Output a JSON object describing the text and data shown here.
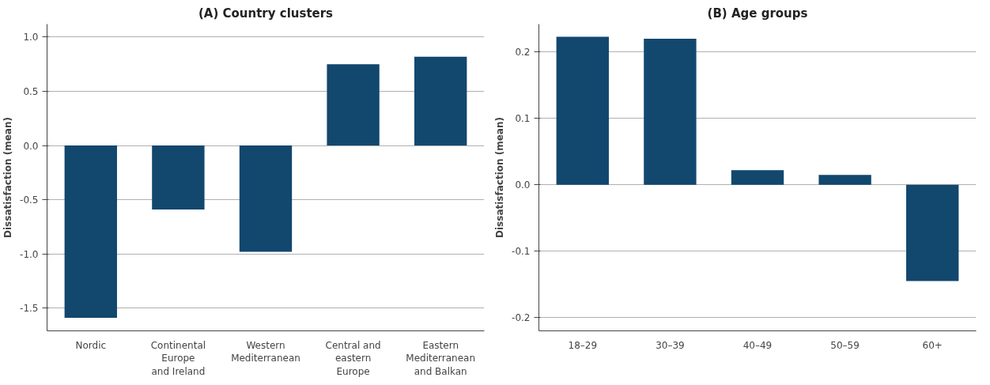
{
  "chart_data": [
    {
      "type": "bar",
      "title": "(A) Country clusters",
      "ylabel": "Dissatisfaction (mean)",
      "categories": [
        "Nordic",
        "Continental\nEurope\nand Ireland",
        "Western\nMediterranean",
        "Central and\neastern\nEurope",
        "Eastern\nMediterranean\nand Balkan"
      ],
      "series": [
        {
          "color": "#12476e",
          "values": [
            -1.59,
            -0.59,
            -0.98,
            0.75,
            0.82
          ]
        }
      ],
      "ylim": [
        -1.71,
        1.12
      ],
      "yticks": [
        {
          "value": -1.5,
          "label": "-1.5"
        },
        {
          "value": -1.0,
          "label": "-1.0"
        },
        {
          "value": -0.5,
          "label": "-0.5"
        },
        {
          "value": 0.0,
          "label": "0.0"
        },
        {
          "value": 0.5,
          "label": "0.5"
        },
        {
          "value": 1.0,
          "label": "1.0"
        }
      ],
      "grid": "y"
    },
    {
      "type": "bar",
      "title": "(B) Age groups",
      "ylabel": "Dissatisfaction (mean)",
      "categories": [
        "18–29",
        "30–39",
        "40–49",
        "50–59",
        "60+"
      ],
      "series": [
        {
          "color": "#12476e",
          "values": [
            0.223,
            0.22,
            0.022,
            0.015,
            -0.145
          ]
        }
      ],
      "ylim": [
        -0.22,
        0.242
      ],
      "yticks": [
        {
          "value": -0.2,
          "label": "-0.2"
        },
        {
          "value": -0.1,
          "label": "-0.1"
        },
        {
          "value": 0.0,
          "label": "0.0"
        },
        {
          "value": 0.1,
          "label": "0.1"
        },
        {
          "value": 0.2,
          "label": "0.2"
        }
      ],
      "grid": "y"
    }
  ]
}
